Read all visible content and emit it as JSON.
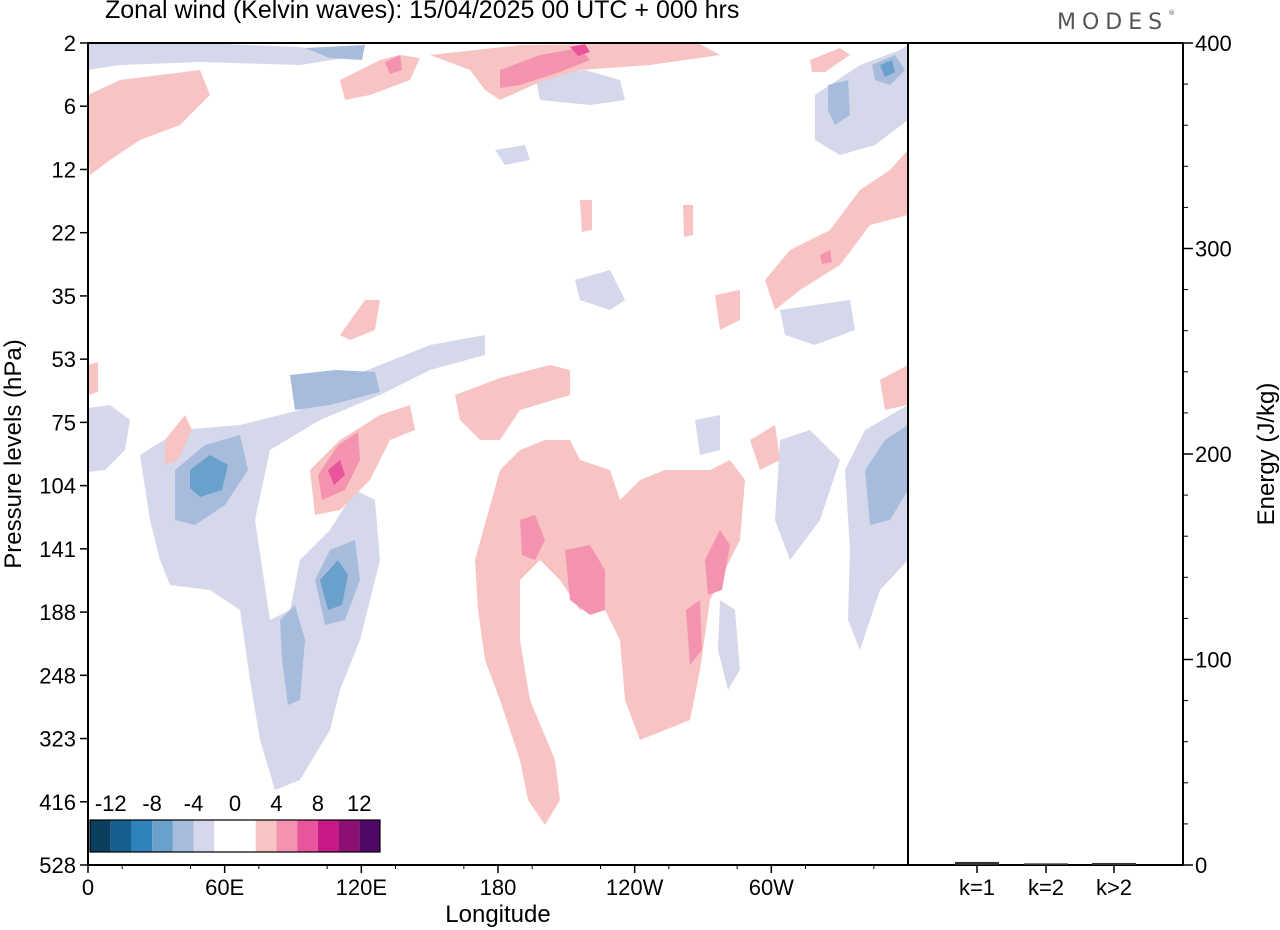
{
  "title": "Zonal wind (Kelvin waves):  15/04/2025  00 UTC  + 000 hrs",
  "brand": "MODES",
  "chart_data": [
    {
      "type": "heatmap",
      "title": "Zonal wind (Kelvin waves):  15/04/2025  00 UTC  + 000 hrs",
      "xlabel": "Longitude",
      "ylabel": "Pressure levels (hPa)",
      "x_ticks": [
        "0",
        "60E",
        "120E",
        "180",
        "120W",
        "60W"
      ],
      "x_range": [
        0,
        360
      ],
      "y_ticks": [
        "2",
        "6",
        "12",
        "22",
        "35",
        "53",
        "75",
        "104",
        "141",
        "188",
        "248",
        "323",
        "416",
        "528"
      ],
      "y_scale": "pressure levels, top 2 hPa, bottom 528 hPa",
      "colorbar": {
        "labels": [
          "-12",
          "-8",
          "-4",
          "0",
          "4",
          "8",
          "12"
        ],
        "colors": [
          "#0c3e5e",
          "#145f8f",
          "#2f83bd",
          "#6aa0cc",
          "#a7bcdc",
          "#d5d8ea",
          "#ffffff",
          "#ffffff",
          "#f7c4c3",
          "#f493b0",
          "#e9559c",
          "#c81a86",
          "#8d0f72",
          "#4f0768"
        ]
      },
      "features": [
        {
          "sign": "negative",
          "strength": -8,
          "lon": 50,
          "level": 104
        },
        {
          "sign": "negative",
          "strength": -8,
          "lon": 110,
          "level": 160
        },
        {
          "sign": "negative",
          "strength": -4,
          "lon": 90,
          "level": 230
        },
        {
          "sign": "positive",
          "strength": 8,
          "lon": 105,
          "level": 104
        },
        {
          "sign": "positive",
          "strength": 4,
          "lon": 200,
          "level": 130
        },
        {
          "sign": "positive",
          "strength": 4,
          "lon": 220,
          "level": 150
        },
        {
          "sign": "positive",
          "strength": 4,
          "lon": 270,
          "level": 160
        },
        {
          "sign": "negative",
          "strength": -4,
          "lon": 350,
          "level": 120
        },
        {
          "sign": "positive",
          "strength": 4,
          "lon": 320,
          "level": 30
        },
        {
          "sign": "negative",
          "strength": -4,
          "lon": 335,
          "level": 6
        }
      ]
    },
    {
      "type": "bar",
      "ylabel": "Energy (J/kg)",
      "categories": [
        "k=1",
        "k=2",
        "k>2"
      ],
      "values": [
        1,
        0.3,
        0.5
      ],
      "ylim": [
        0,
        400
      ],
      "y_ticks": [
        "0",
        "100",
        "200",
        "300",
        "400"
      ]
    }
  ]
}
